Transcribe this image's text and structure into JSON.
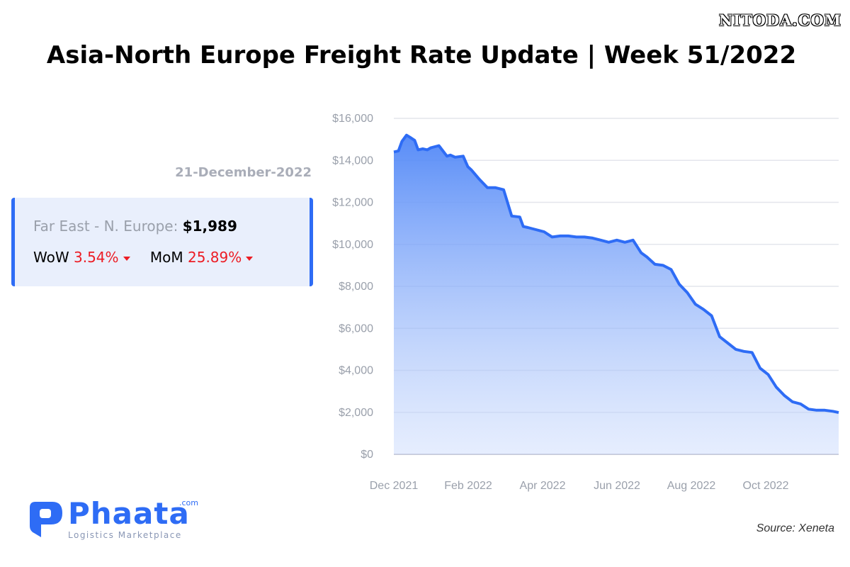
{
  "watermark": "NITODA.COM",
  "title": "Asia-North Europe Freight Rate Update | Week 51/2022",
  "date": "21-December-2022",
  "card": {
    "route_label": "Far East - N. Europe:",
    "route_value": "$1,989",
    "wow_label": "WoW",
    "wow_value": "3.54%",
    "mom_label": "MoM",
    "mom_value": "25.89%",
    "change_direction": "down",
    "accent_color": "#2e6cf5",
    "negative_color": "#ec1c24"
  },
  "logo": {
    "name": "Phaata",
    "domain": ".com",
    "tagline": "Logistics Marketplace",
    "icon": "phaata-p-logo"
  },
  "source": "Source: Xeneta",
  "chart_data": {
    "type": "area",
    "title": "",
    "xlabel": "",
    "ylabel": "",
    "ylim": [
      0,
      16000
    ],
    "yticks": [
      "$0",
      "$2,000",
      "$4,000",
      "$6,000",
      "$8,000",
      "$10,000",
      "$12,000",
      "$14,000",
      "$16,000"
    ],
    "xticks": [
      "Dec 2021",
      "Feb 2022",
      "Apr 2022",
      "Jun 2022",
      "Aug 2022",
      "Oct 2022"
    ],
    "xlim": [
      "2021-12-01",
      "2022-12-21"
    ],
    "grid": true,
    "line_color": "#2e6cf5",
    "series": [
      {
        "x": [
          "2021-12-01",
          "2021-12-05",
          "2021-12-08",
          "2021-12-12",
          "2021-12-15",
          "2021-12-19",
          "2021-12-22",
          "2021-12-26",
          "2021-12-30",
          "2022-01-02",
          "2022-01-09",
          "2022-01-16",
          "2022-01-19",
          "2022-01-23",
          "2022-01-30",
          "2022-02-03",
          "2022-02-06",
          "2022-02-13",
          "2022-02-20",
          "2022-02-27",
          "2022-03-06",
          "2022-03-13",
          "2022-03-20",
          "2022-03-23",
          "2022-03-27",
          "2022-04-03",
          "2022-04-10",
          "2022-04-17",
          "2022-04-24",
          "2022-05-01",
          "2022-05-08",
          "2022-05-15",
          "2022-05-22",
          "2022-05-29",
          "2022-06-05",
          "2022-06-12",
          "2022-06-19",
          "2022-06-26",
          "2022-07-03",
          "2022-07-08",
          "2022-07-15",
          "2022-07-22",
          "2022-07-29",
          "2022-08-05",
          "2022-08-12",
          "2022-08-19",
          "2022-08-26",
          "2022-09-02",
          "2022-09-09",
          "2022-09-16",
          "2022-09-23",
          "2022-09-30",
          "2022-10-07",
          "2022-10-14",
          "2022-10-21",
          "2022-10-28",
          "2022-11-04",
          "2022-11-11",
          "2022-11-18",
          "2022-11-25",
          "2022-12-02",
          "2022-12-09",
          "2022-12-16",
          "2022-12-21"
        ],
        "values": [
          14400,
          14450,
          14900,
          15200,
          15100,
          14950,
          14500,
          14550,
          14500,
          14600,
          14700,
          14200,
          14250,
          14150,
          14200,
          13700,
          13550,
          13100,
          12700,
          12700,
          12600,
          11350,
          11300,
          10850,
          10800,
          10700,
          10600,
          10350,
          10400,
          10400,
          10350,
          10350,
          10300,
          10200,
          10100,
          10200,
          10100,
          10200,
          9600,
          9400,
          9050,
          9000,
          8800,
          8100,
          7700,
          7150,
          6900,
          6600,
          5600,
          5300,
          5000,
          4900,
          4850,
          4100,
          3800,
          3200,
          2800,
          2500,
          2400,
          2150,
          2100,
          2100,
          2050,
          1989
        ]
      }
    ]
  }
}
